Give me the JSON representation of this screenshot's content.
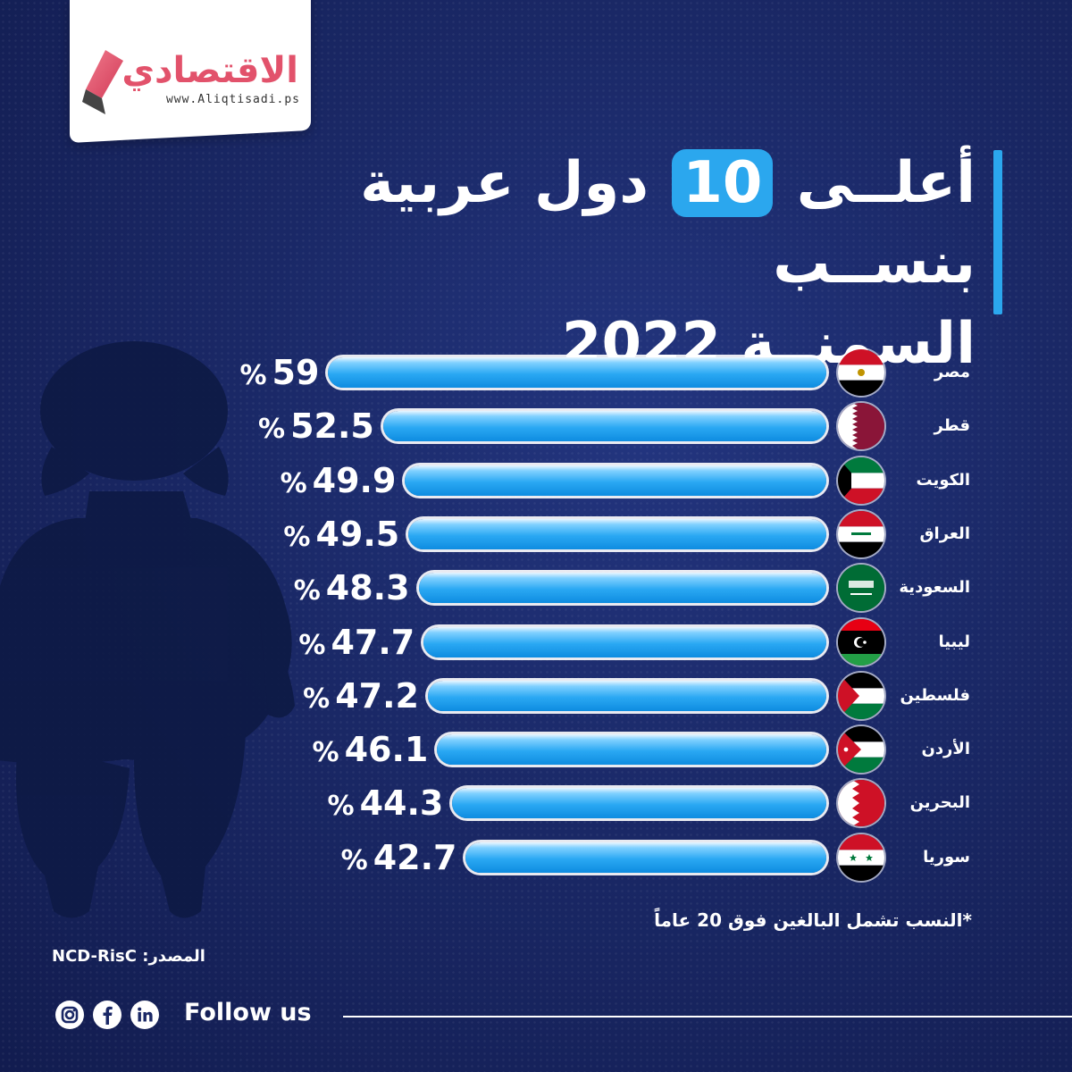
{
  "brand": {
    "logo_text": "الاقتصادي",
    "url": "www.Aliqtisadi.ps",
    "accent": "#e2526b"
  },
  "title": {
    "line1_before": "أعلــى",
    "number": "10",
    "line1_after": "دول عربية بنســب",
    "line2": "السمنــة 2022",
    "accent": "#2ba7ee"
  },
  "chart_data": {
    "type": "bar",
    "orientation": "horizontal",
    "categories": [
      "مصر",
      "قطر",
      "الكويت",
      "العراق",
      "السعودية",
      "ليبيا",
      "فلسطين",
      "الأردن",
      "البحرين",
      "سوريا"
    ],
    "values": [
      59,
      52.5,
      49.9,
      49.5,
      48.3,
      47.7,
      47.2,
      46.1,
      44.3,
      42.7
    ],
    "value_labels": [
      "59",
      "52.5",
      "49.9",
      "49.5",
      "48.3",
      "47.7",
      "47.2",
      "46.1",
      "44.3",
      "42.7"
    ],
    "unit": "%",
    "flags": [
      "egypt",
      "qatar",
      "kuwait",
      "iraq",
      "saudi-arabia",
      "libya",
      "palestine",
      "jordan",
      "bahrain",
      "syria"
    ],
    "bar_color": "#2aa8f3"
  },
  "note": "*النسب تشمل البالغين فوق 20 عاماً",
  "source": "المصدر: NCD-RisC",
  "footer": {
    "follow": "Follow us",
    "icons": [
      "instagram-icon",
      "facebook-icon",
      "linkedin-icon"
    ]
  }
}
